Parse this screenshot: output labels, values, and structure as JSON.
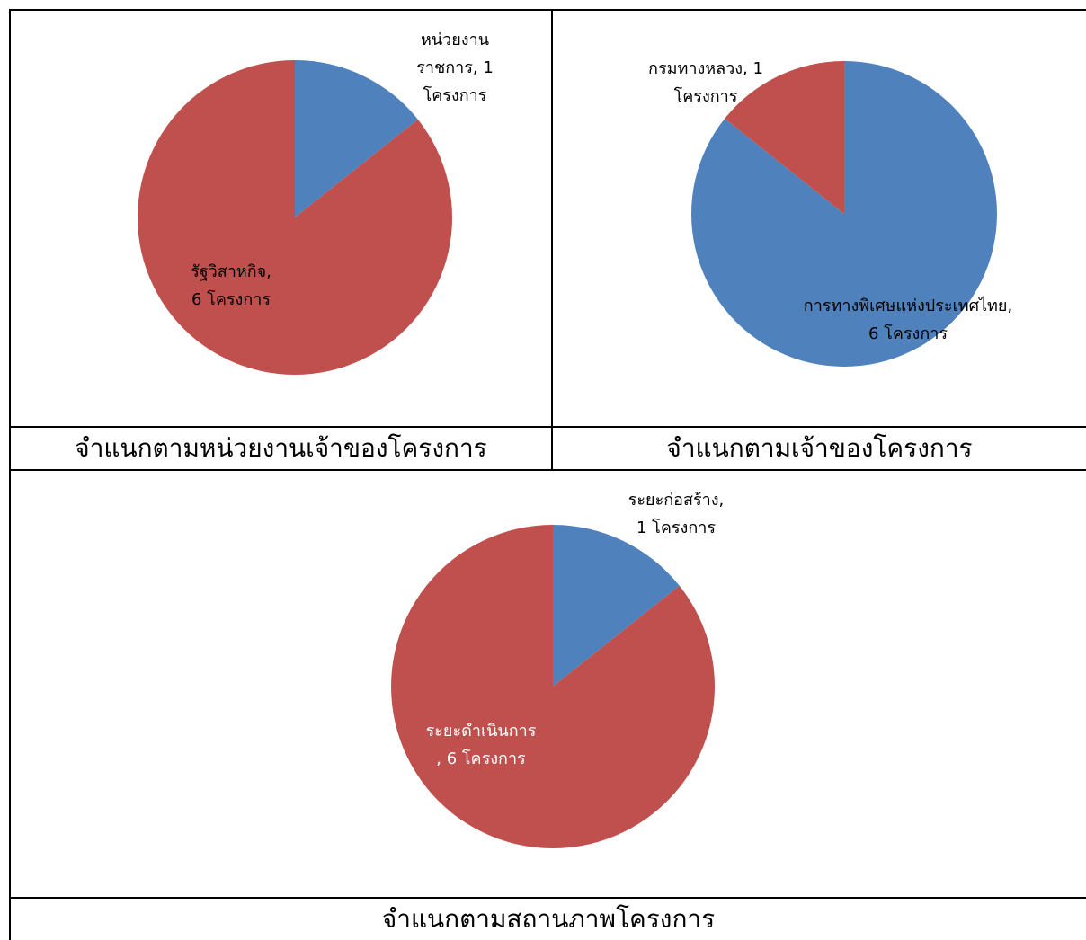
{
  "captions": {
    "top_left": "จำแนกตามหน่วยงานเจ้าของโครงการ",
    "top_right": "จำแนกตามเจ้าของโครงการ",
    "bottom": "จำแนกตามสถานภาพโครงการ"
  },
  "colors": {
    "blue": "#4F81BD",
    "red": "#C0504D"
  },
  "chart_data": [
    {
      "type": "pie",
      "categories": [
        "หน่วยงานราชการ",
        "รัฐวิสาหกิจ"
      ],
      "values": [
        1,
        6
      ],
      "colors": [
        "#4F81BD",
        "#C0504D"
      ],
      "data_labels": [
        [
          "หน่วยงาน",
          "ราชการ, 1",
          "โครงการ"
        ],
        [
          "รัฐวิสาหกิจ,",
          "6 โครงการ"
        ]
      ]
    },
    {
      "type": "pie",
      "categories": [
        "การทางพิเศษแห่งประเทศไทย",
        "กรมทางหลวง"
      ],
      "values": [
        6,
        1
      ],
      "colors": [
        "#4F81BD",
        "#C0504D"
      ],
      "data_labels": [
        [
          "การทางพิเศษแห่งประเทศไทย,",
          "6 โครงการ"
        ],
        [
          "กรมทางหลวง, 1",
          "โครงการ"
        ]
      ]
    },
    {
      "type": "pie",
      "categories": [
        "ระยะก่อสร้าง",
        "ระยะดำเนินการ"
      ],
      "values": [
        1,
        6
      ],
      "colors": [
        "#4F81BD",
        "#C0504D"
      ],
      "data_labels": [
        [
          "ระยะก่อสร้าง,",
          "1  โครงการ"
        ],
        [
          "ระยะดำเนินการ",
          ", 6 โครงการ"
        ]
      ]
    }
  ]
}
